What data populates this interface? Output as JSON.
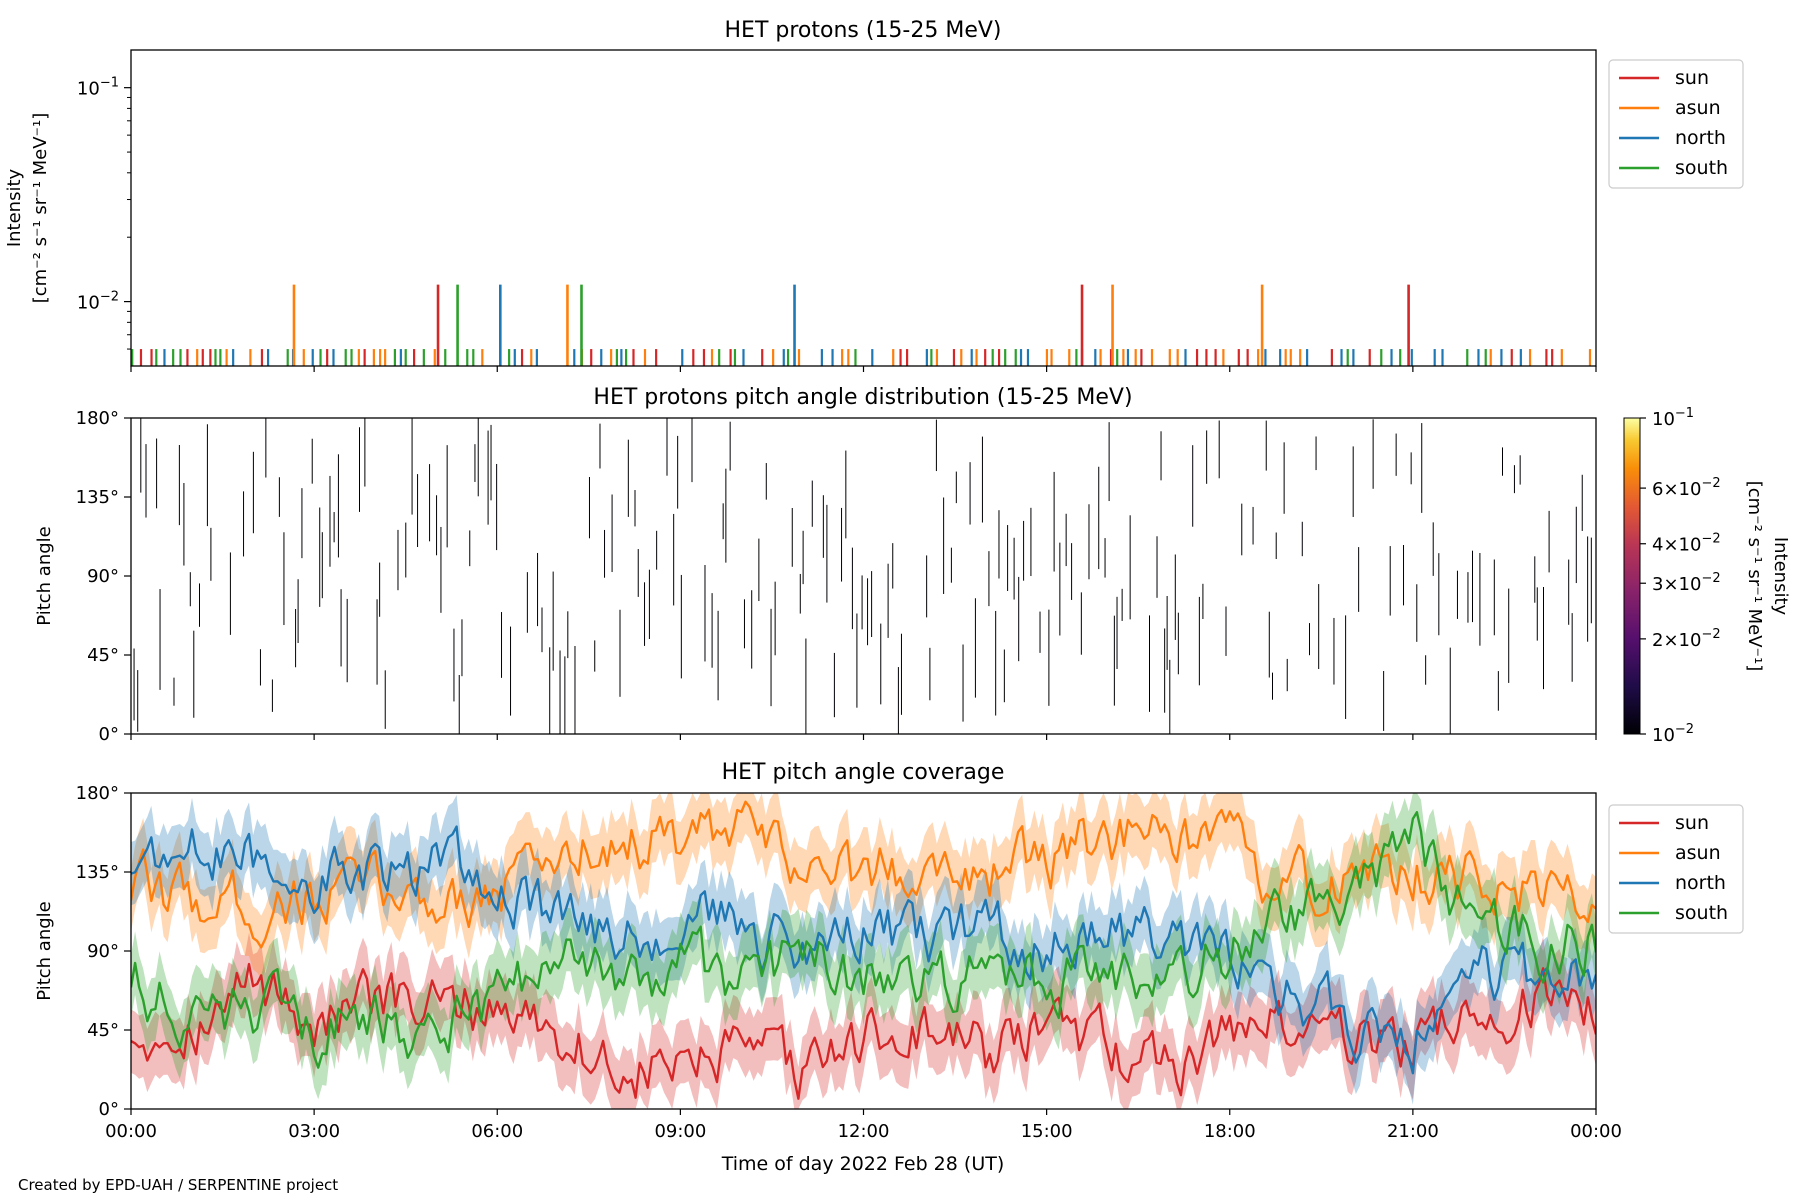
{
  "colors": {
    "sun": "#d62728",
    "asun": "#ff7f0e",
    "north": "#1f77b4",
    "south": "#2ca02c"
  },
  "footer": {
    "credit": "Created by EPD-UAH / SERPENTINE project"
  },
  "chart_data": [
    {
      "id": "intensity",
      "type": "line",
      "title": "HET protons (15-25 MeV)",
      "ylabel_line1": "Intensity",
      "ylabel_line2": "[cm⁻² s⁻¹ sr⁻¹ MeV⁻¹]",
      "yscale": "log",
      "ylim": [
        0.005,
        0.15
      ],
      "yticks": [
        {
          "v": 0.01,
          "base": "10",
          "exp": "−2"
        },
        {
          "v": 0.1,
          "base": "10",
          "exp": "−1"
        }
      ],
      "legend": {
        "placement": "outside-right",
        "entries": [
          "sun",
          "asun",
          "north",
          "south"
        ]
      },
      "spike_value": 0.012,
      "floor_value": 0.006,
      "spikes": [
        {
          "series": "asun",
          "t": 2.67
        },
        {
          "series": "sun",
          "t": 5.03
        },
        {
          "series": "south",
          "t": 5.35
        },
        {
          "series": "north",
          "t": 6.05
        },
        {
          "series": "asun",
          "t": 7.15
        },
        {
          "series": "south",
          "t": 7.38
        },
        {
          "series": "north",
          "t": 10.87
        },
        {
          "series": "sun",
          "t": 15.58
        },
        {
          "series": "asun",
          "t": 16.08
        },
        {
          "series": "asun",
          "t": 18.53
        },
        {
          "series": "sun",
          "t": 20.93
        }
      ]
    },
    {
      "id": "pad",
      "type": "heatmap",
      "title": "HET protons pitch angle distribution (15-25 MeV)",
      "ylabel": "Pitch angle",
      "ylim": [
        0,
        180
      ],
      "yticks": [
        "0°",
        "45°",
        "90°",
        "135°",
        "180°"
      ],
      "colorbar": {
        "label_line1": "Intensity",
        "label_line2": "[cm⁻² s⁻¹ sr⁻¹ MeV⁻¹]",
        "scale": "log",
        "range": [
          0.01,
          0.1
        ],
        "ticks": [
          {
            "v": 0.1,
            "base": "10",
            "exp": "−1"
          },
          {
            "v": 0.06,
            "mant": "6×",
            "base": "10",
            "exp": "−2"
          },
          {
            "v": 0.04,
            "mant": "4×",
            "base": "10",
            "exp": "−2"
          },
          {
            "v": 0.03,
            "mant": "3×",
            "base": "10",
            "exp": "−2"
          },
          {
            "v": 0.02,
            "mant": "2×",
            "base": "10",
            "exp": "−2"
          },
          {
            "v": 0.01,
            "base": "10",
            "exp": "−2"
          }
        ]
      }
    },
    {
      "id": "coverage",
      "type": "line",
      "title": "HET pitch angle coverage",
      "ylabel": "Pitch angle",
      "xlabel": "Time of day 2022 Feb 28 (UT)",
      "ylim": [
        0,
        180
      ],
      "yticks": [
        "0°",
        "45°",
        "90°",
        "135°",
        "180°"
      ],
      "xlim": [
        0,
        24
      ],
      "xticks": [
        "00:00",
        "03:00",
        "06:00",
        "09:00",
        "12:00",
        "15:00",
        "18:00",
        "21:00",
        "00:00"
      ],
      "legend": {
        "placement": "outside-right",
        "entries": [
          "sun",
          "asun",
          "north",
          "south"
        ]
      },
      "band_halfwidth_deg": 18,
      "series": [
        {
          "name": "sun",
          "t": [
            0,
            1.5,
            2,
            3,
            4,
            5,
            6,
            7,
            8,
            9,
            10,
            11,
            12,
            13,
            14,
            15,
            16,
            17,
            18,
            19,
            20,
            21,
            22,
            23,
            24
          ],
          "values": [
            45,
            55,
            75,
            50,
            60,
            55,
            60,
            45,
            20,
            25,
            30,
            20,
            40,
            45,
            30,
            45,
            35,
            25,
            45,
            50,
            40,
            40,
            55,
            60,
            60
          ]
        },
        {
          "name": "asun",
          "t": [
            0,
            1,
            2,
            3,
            4,
            5,
            6,
            7,
            8,
            9,
            10,
            11,
            12,
            13,
            14,
            15,
            16,
            17,
            18,
            19,
            20,
            21,
            22,
            23,
            24
          ],
          "values": [
            125,
            120,
            115,
            120,
            125,
            120,
            125,
            145,
            155,
            150,
            155,
            140,
            130,
            145,
            135,
            140,
            155,
            150,
            145,
            125,
            130,
            135,
            130,
            120,
            120
          ]
        },
        {
          "name": "north",
          "t": [
            0,
            1,
            2,
            3,
            4,
            5,
            6,
            7,
            8,
            9,
            10,
            11,
            12,
            13,
            14,
            15,
            16,
            17,
            18,
            19,
            20,
            21,
            22,
            23,
            24
          ],
          "values": [
            140,
            145,
            140,
            135,
            130,
            135,
            130,
            105,
            95,
            110,
            100,
            90,
            100,
            95,
            100,
            90,
            100,
            95,
            80,
            65,
            45,
            40,
            85,
            70,
            75
          ]
        },
        {
          "name": "south",
          "t": [
            0,
            1,
            2,
            3,
            4,
            5,
            6,
            7,
            8,
            9,
            10,
            11,
            12,
            13,
            14,
            15,
            16,
            17,
            18,
            19,
            20,
            21,
            22,
            23,
            24
          ],
          "values": [
            75,
            50,
            55,
            45,
            50,
            45,
            60,
            80,
            75,
            80,
            70,
            85,
            75,
            70,
            80,
            75,
            70,
            75,
            90,
            105,
            125,
            150,
            100,
            95,
            100
          ]
        }
      ]
    }
  ]
}
